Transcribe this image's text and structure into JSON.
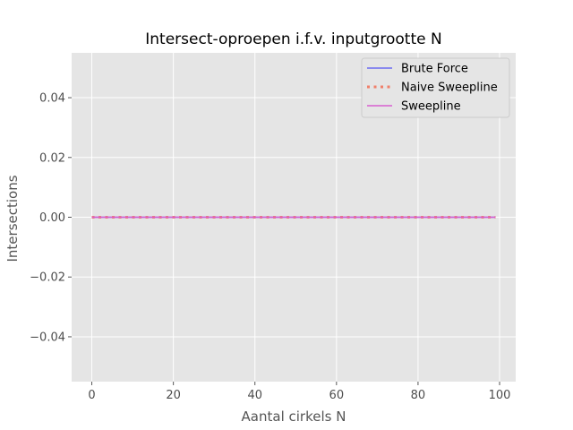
{
  "chart_data": {
    "type": "line",
    "title": "Intersect-oproepen i.f.v. inputgrootte N",
    "xlabel": "Aantal cirkels N",
    "ylabel": "Intersections",
    "xlim": [
      -4.95,
      103.95
    ],
    "ylim": [
      -0.055,
      0.055
    ],
    "x_ticks": [
      0,
      20,
      40,
      60,
      80,
      100
    ],
    "x_tick_labels": [
      "0",
      "20",
      "40",
      "60",
      "80",
      "100"
    ],
    "y_ticks": [
      -0.04,
      -0.02,
      0.0,
      0.02,
      0.04
    ],
    "y_tick_labels": [
      "−0.04",
      "−0.02",
      "0.00",
      "0.02",
      "0.04"
    ],
    "grid": true,
    "legend_position": "top-right",
    "x": [
      0,
      99
    ],
    "series": [
      {
        "name": "Brute Force",
        "values": [
          0,
          0
        ],
        "color": "#6b6bf2",
        "style": "solid"
      },
      {
        "name": "Naive Sweepline",
        "values": [
          0,
          0
        ],
        "color": "#f0806a",
        "style": "dotted"
      },
      {
        "name": "Sweepline",
        "values": [
          0,
          0
        ],
        "color": "#d85fd0",
        "style": "solid"
      }
    ]
  }
}
